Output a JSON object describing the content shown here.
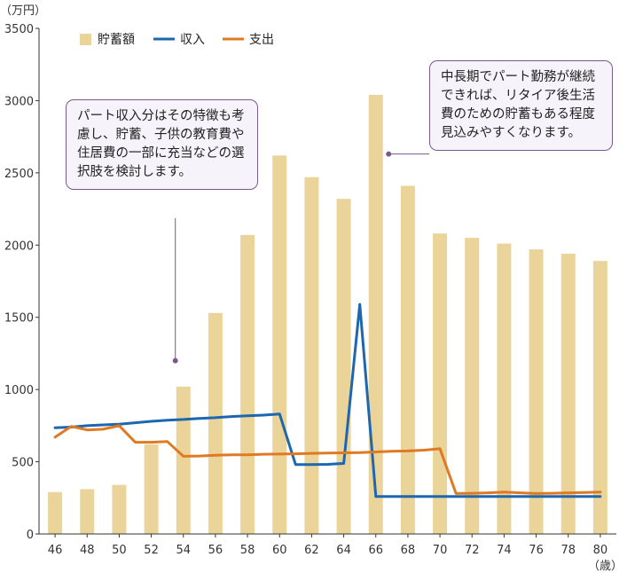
{
  "chart_data": {
    "type": "bar",
    "title": "",
    "y_unit_label": "（万円）",
    "x_unit_label": "（歳）",
    "ylim": [
      0,
      3500
    ],
    "yticks": [
      0,
      500,
      1000,
      1500,
      2000,
      2500,
      3000,
      3500
    ],
    "x_tick_labels": [
      "46",
      "48",
      "50",
      "52",
      "54",
      "56",
      "58",
      "60",
      "62",
      "64",
      "66",
      "68",
      "70",
      "72",
      "74",
      "76",
      "78",
      "80"
    ],
    "x": [
      46,
      47,
      48,
      49,
      50,
      51,
      52,
      53,
      54,
      55,
      56,
      57,
      58,
      59,
      60,
      61,
      62,
      63,
      64,
      65,
      66,
      67,
      68,
      69,
      70,
      71,
      72,
      73,
      74,
      75,
      76,
      77,
      78,
      79,
      80
    ],
    "grid": false,
    "legend_position": "top-left",
    "series": [
      {
        "name": "貯蓄額",
        "type": "bar",
        "color": "#ead49a",
        "x": [
          46,
          48,
          50,
          52,
          54,
          56,
          58,
          60,
          62,
          64,
          66,
          68,
          70,
          72,
          74,
          76,
          78,
          80
        ],
        "values": [
          290,
          310,
          340,
          620,
          1020,
          1530,
          2070,
          2620,
          2470,
          2320,
          3040,
          2410,
          2080,
          2050,
          2010,
          1970,
          1940,
          1890
        ]
      },
      {
        "name": "収入",
        "type": "line",
        "color": "#1d67b0",
        "values": [
          735,
          740,
          750,
          755,
          760,
          770,
          780,
          788,
          793,
          800,
          805,
          813,
          818,
          823,
          830,
          480,
          480,
          482,
          488,
          1590,
          260,
          260,
          260,
          260,
          260,
          260,
          260,
          260,
          260,
          260,
          260,
          260,
          260,
          260,
          260
        ]
      },
      {
        "name": "支出",
        "type": "line",
        "color": "#e07a22",
        "values": [
          670,
          745,
          720,
          725,
          750,
          635,
          635,
          640,
          538,
          540,
          545,
          548,
          548,
          552,
          553,
          555,
          558,
          560,
          562,
          563,
          568,
          572,
          575,
          580,
          590,
          280,
          282,
          285,
          290,
          285,
          280,
          282,
          285,
          287,
          290
        ]
      }
    ],
    "annotations": [
      {
        "text": "パート収入分はその特徴も考慮し、貯蓄、子供の教育費や住居費の一部に充当などの選択肢を検討します。",
        "anchor_x": 53.5,
        "anchor_y": 1200
      },
      {
        "text": "中長期でパート勤務が継続できれば、リタイア後生活費のための貯蓄もある程度見込みやすくなります。",
        "anchor_x": 66.8,
        "anchor_y": 2630
      }
    ]
  }
}
